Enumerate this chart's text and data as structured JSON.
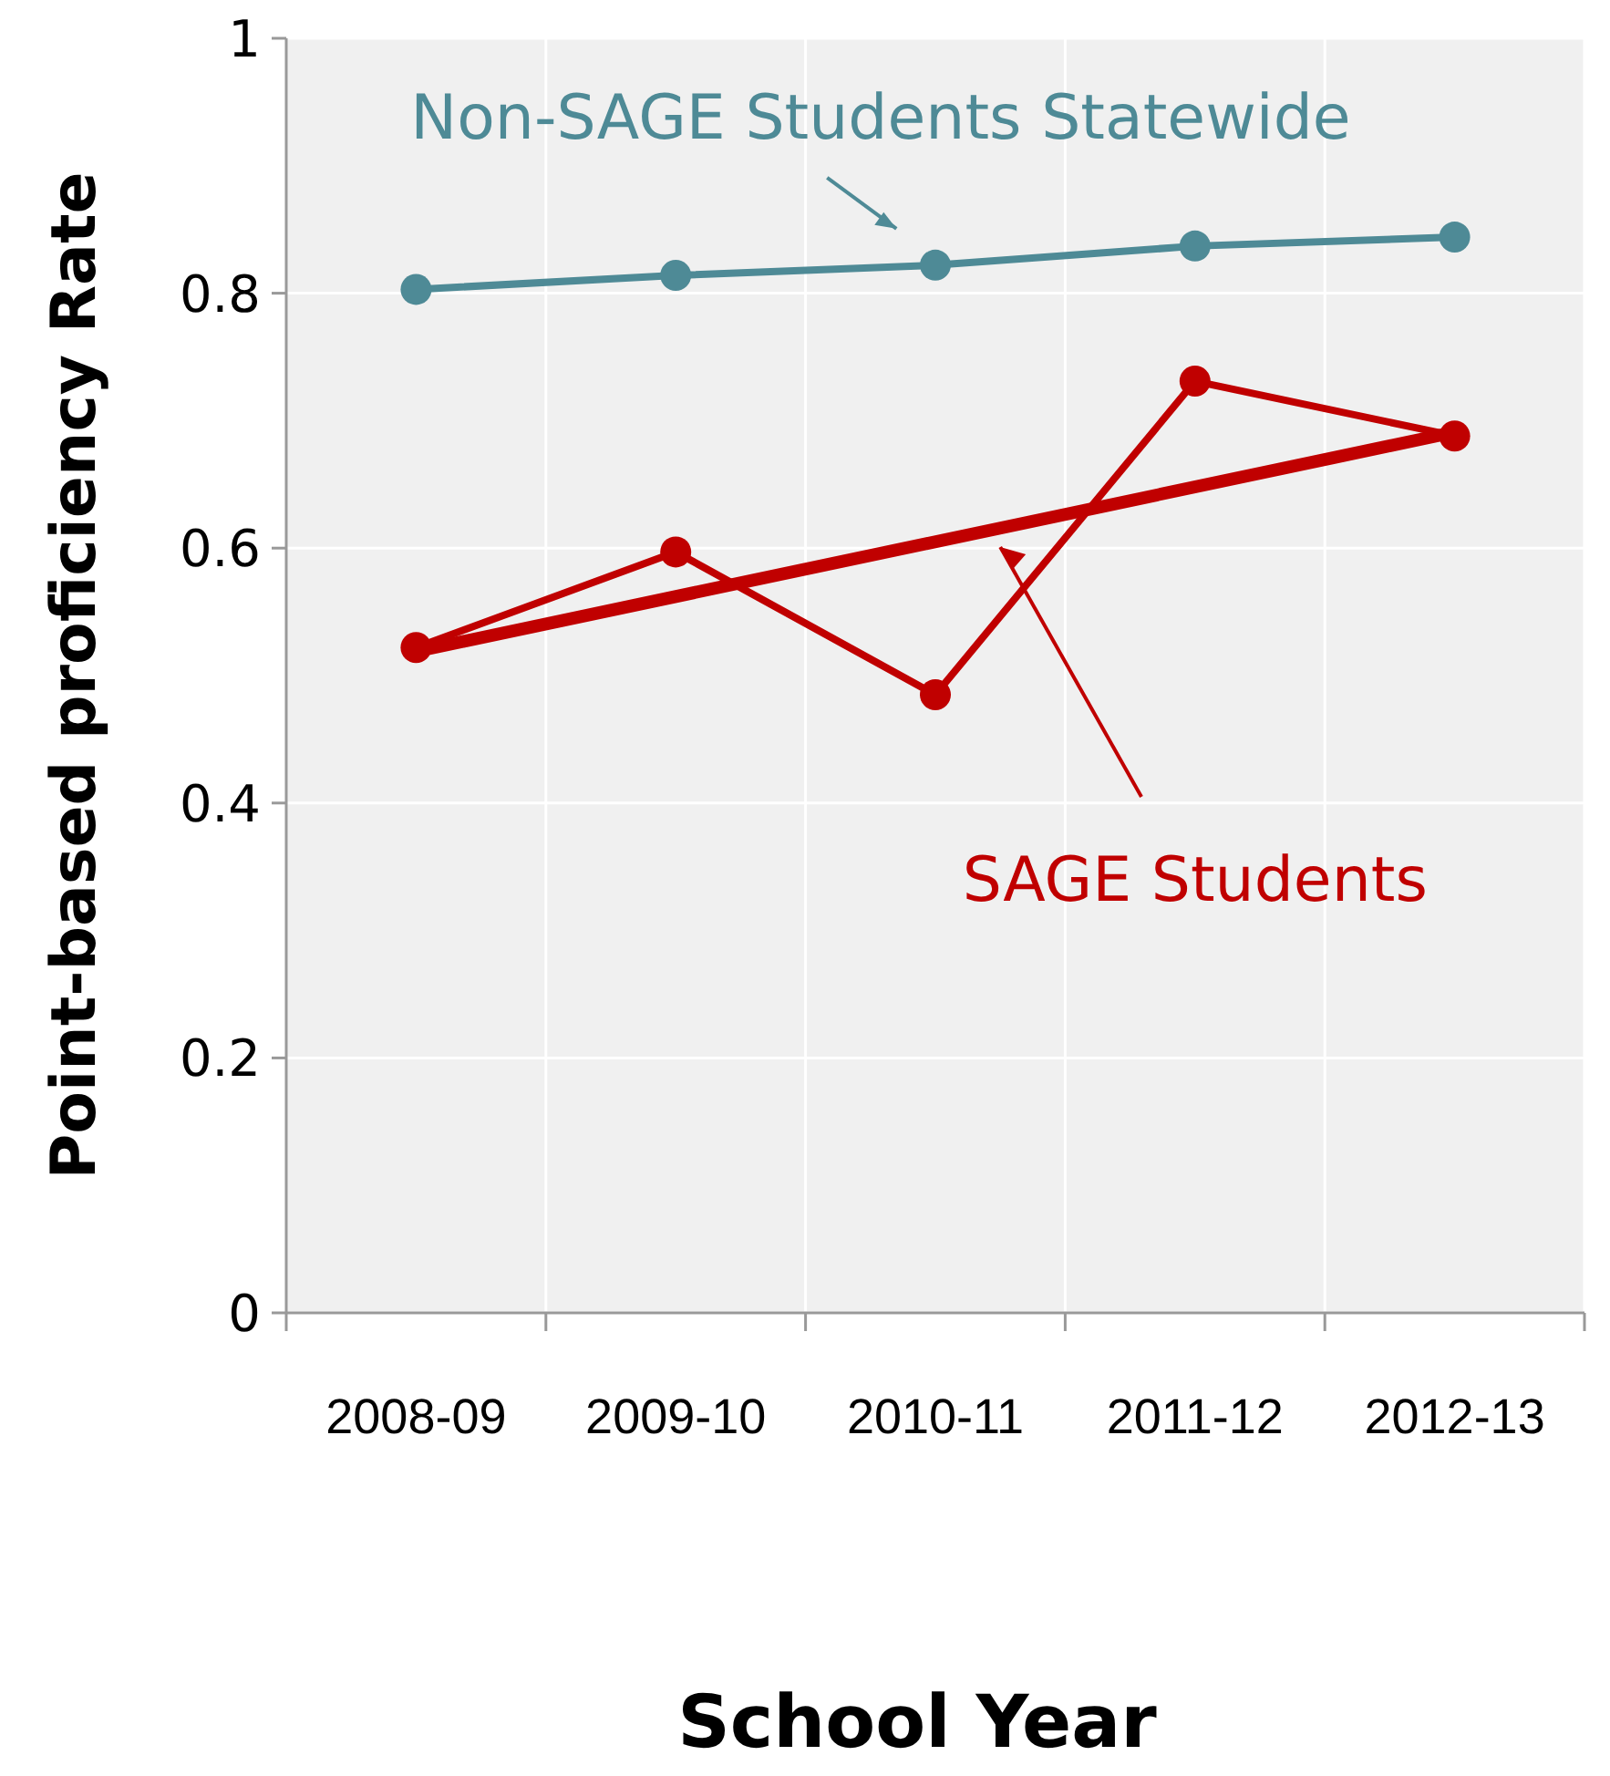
{
  "chart_data": {
    "type": "line",
    "xlabel": "School Year",
    "ylabel": "Point-based proficiency Rate",
    "categories": [
      "2008-09",
      "2009-10",
      "2010-11",
      "2011-12",
      "2012-13"
    ],
    "ylim": [
      0,
      1
    ],
    "yticks": [
      0,
      0.2,
      0.4,
      0.6,
      0.8,
      1
    ],
    "grid": true,
    "marker": "circle",
    "legend": false,
    "series": [
      {
        "name": "Non-SAGE Students Statewide",
        "color": "#4e8a96",
        "values": [
          0.803,
          0.814,
          0.822,
          0.837,
          0.844
        ]
      },
      {
        "name": "SAGE Students",
        "color": "#c00000",
        "values": [
          0.522,
          0.597,
          0.485,
          0.731,
          0.688
        ]
      },
      {
        "type": "line",
        "color": "#c00000",
        "marker": "none",
        "values": [
          0.519,
          null,
          null,
          null,
          0.691
        ]
      }
    ]
  }
}
